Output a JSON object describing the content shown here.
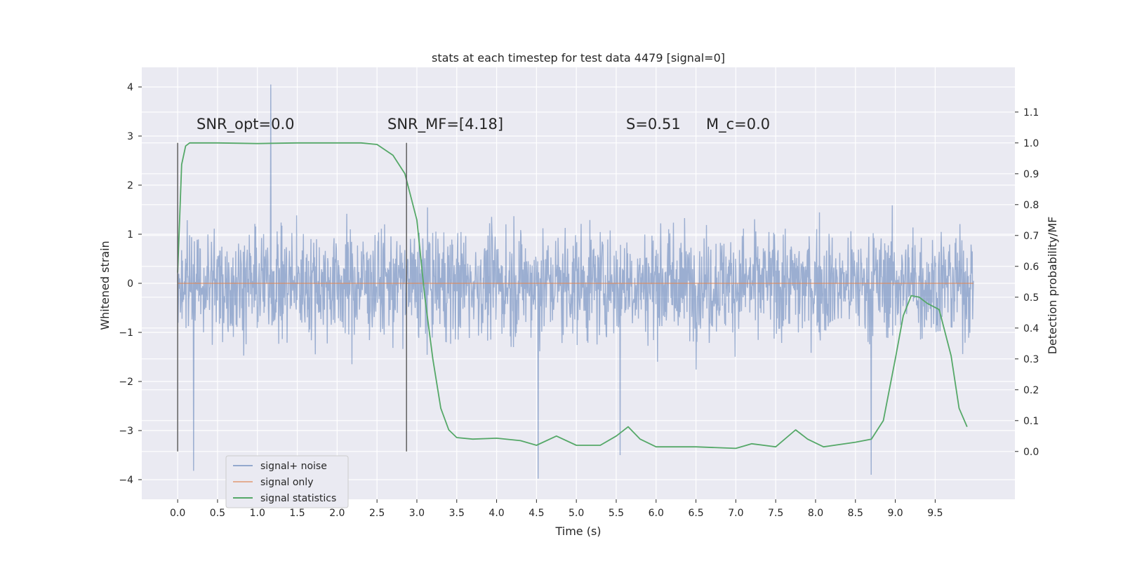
{
  "chart_data": {
    "type": "line",
    "title": "stats at each timestep for test data 4479 [signal=0]",
    "xlabel": "Time (s)",
    "ylabel": "Whitened strain",
    "y2label": "Detection probability/MF",
    "xlim": [
      -0.45,
      10.5
    ],
    "ylim": [
      -4.4,
      4.4
    ],
    "y2lim": [
      -0.155,
      1.245
    ],
    "xticks": [
      0.0,
      0.5,
      1.0,
      1.5,
      2.0,
      2.5,
      3.0,
      3.5,
      4.0,
      4.5,
      5.0,
      5.5,
      6.0,
      6.5,
      7.0,
      7.5,
      8.0,
      8.5,
      9.0,
      9.5
    ],
    "xtick_labels": [
      "0.0",
      "0.5",
      "1.0",
      "1.5",
      "2.0",
      "2.5",
      "3.0",
      "3.5",
      "4.0",
      "4.5",
      "5.0",
      "5.5",
      "6.0",
      "6.5",
      "7.0",
      "7.5",
      "8.0",
      "8.5",
      "9.0",
      "9.5"
    ],
    "yticks": [
      -4,
      -3,
      -2,
      -1,
      0,
      1,
      2,
      3,
      4
    ],
    "ytick_labels": [
      "−4",
      "−3",
      "−2",
      "−1",
      "0",
      "1",
      "2",
      "3",
      "4"
    ],
    "y2ticks": [
      0.0,
      0.1,
      0.2,
      0.3,
      0.4,
      0.5,
      0.6,
      0.7,
      0.8,
      0.9,
      1.0,
      1.1
    ],
    "y2tick_labels": [
      "0.0",
      "0.1",
      "0.2",
      "0.3",
      "0.4",
      "0.5",
      "0.6",
      "0.7",
      "0.8",
      "0.9",
      "1.0",
      "1.1"
    ],
    "grid": true,
    "legend_position": "lower-left",
    "series": [
      {
        "name": "signal+ noise",
        "color": "#4c72b0",
        "axis": "left",
        "kind": "dense noise, approx. ±1.8 amplitude with peaks up to 4.05 and down to −3.98",
        "x_range": [
          0.0,
          9.98
        ],
        "peaks": [
          [
            1.17,
            4.05
          ],
          [
            4.52,
            -3.98
          ],
          [
            0.2,
            -3.82
          ],
          [
            8.7,
            -3.9
          ],
          [
            5.55,
            -3.5
          ]
        ]
      },
      {
        "name": "signal only",
        "color": "#dd8452",
        "axis": "left",
        "x": [
          0.0,
          9.98
        ],
        "y": [
          0.0,
          0.0
        ]
      },
      {
        "name": "signal statistics",
        "color": "#55a868",
        "axis": "right",
        "x": [
          0.0,
          0.05,
          0.1,
          0.15,
          0.25,
          0.5,
          1.0,
          1.5,
          2.0,
          2.3,
          2.5,
          2.7,
          2.85,
          3.0,
          3.1,
          3.2,
          3.3,
          3.4,
          3.5,
          3.7,
          4.0,
          4.3,
          4.5,
          4.75,
          5.0,
          5.3,
          5.5,
          5.65,
          5.8,
          6.0,
          6.5,
          7.0,
          7.2,
          7.5,
          7.75,
          7.9,
          8.1,
          8.5,
          8.7,
          8.85,
          9.0,
          9.1,
          9.2,
          9.3,
          9.4,
          9.55,
          9.7,
          9.8,
          9.9
        ],
        "y": [
          0.58,
          0.93,
          0.99,
          1.0,
          1.0,
          1.0,
          0.998,
          1.0,
          1.0,
          1.0,
          0.995,
          0.96,
          0.9,
          0.75,
          0.5,
          0.3,
          0.14,
          0.07,
          0.045,
          0.04,
          0.043,
          0.035,
          0.02,
          0.05,
          0.02,
          0.02,
          0.05,
          0.08,
          0.04,
          0.015,
          0.015,
          0.01,
          0.025,
          0.015,
          0.07,
          0.04,
          0.015,
          0.03,
          0.04,
          0.1,
          0.3,
          0.44,
          0.505,
          0.5,
          0.48,
          0.46,
          0.31,
          0.14,
          0.08
        ]
      }
    ],
    "vlines": [
      0.0,
      2.87
    ],
    "annotations": [
      "SNR_opt=0.0",
      "SNR_MF=[4.18]",
      "S=0.51",
      "M_c=0.0"
    ]
  }
}
